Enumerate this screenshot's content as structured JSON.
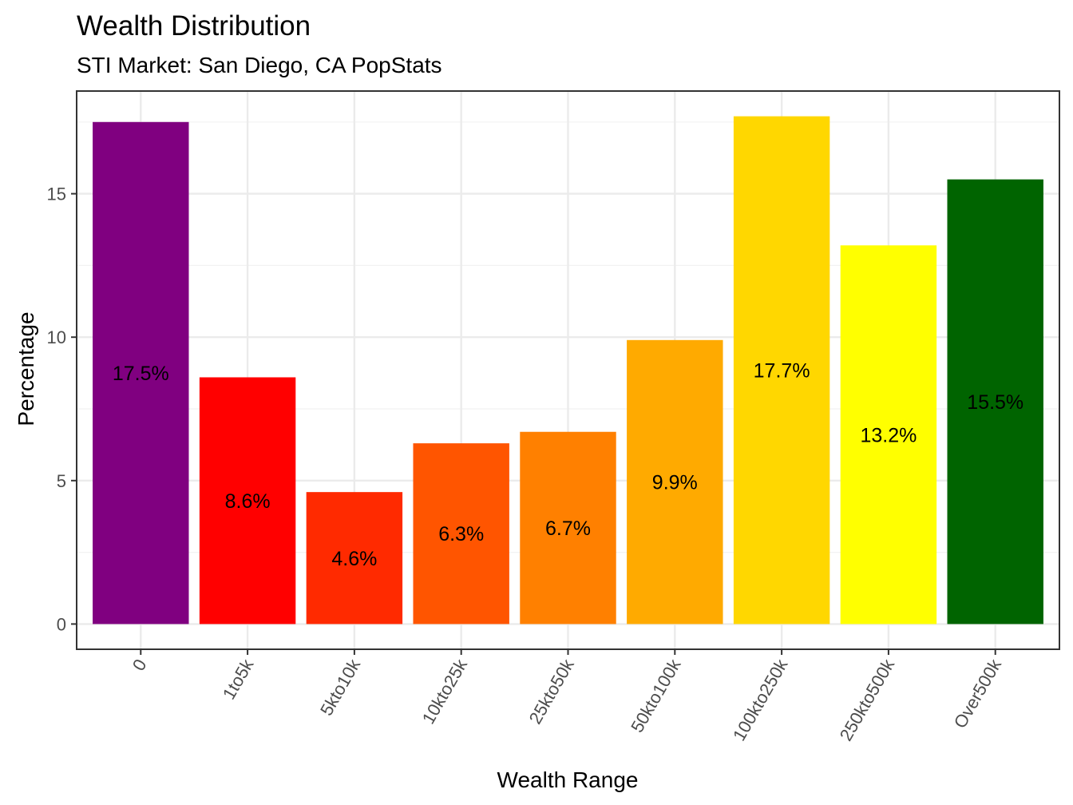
{
  "chart_data": {
    "type": "bar",
    "title": "Wealth Distribution",
    "subtitle": "STI Market: San Diego, CA PopStats",
    "xlabel": "Wealth Range",
    "ylabel": "Percentage",
    "categories": [
      "0",
      "1to5k",
      "5kto10k",
      "10kto25k",
      "25kto50k",
      "50kto100k",
      "100kto250k",
      "250kto500k",
      "Over500k"
    ],
    "values": [
      17.5,
      8.6,
      4.6,
      6.3,
      6.7,
      9.9,
      17.7,
      13.2,
      15.5
    ],
    "labels": [
      "17.5%",
      "8.6%",
      "4.6%",
      "6.3%",
      "6.7%",
      "9.9%",
      "17.7%",
      "13.2%",
      "15.5%"
    ],
    "colors": [
      "#800080",
      "#ff0000",
      "#ff2a00",
      "#ff5500",
      "#ff8000",
      "#ffaa00",
      "#ffd700",
      "#ffff00",
      "#006400"
    ],
    "yticks": [
      0,
      5,
      10,
      15
    ],
    "ylim": [
      -0.88,
      18.58
    ],
    "grid": true,
    "legend": "none"
  }
}
